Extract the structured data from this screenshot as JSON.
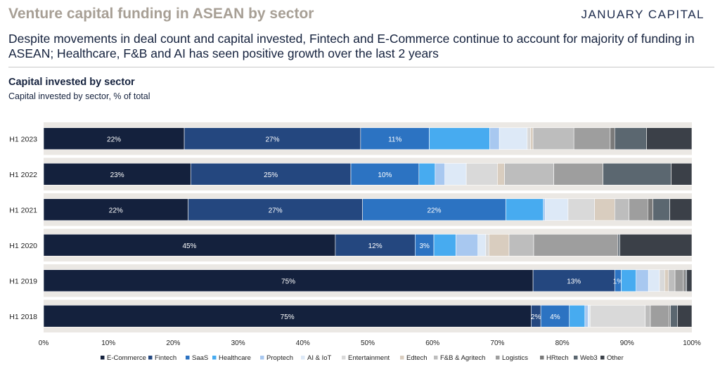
{
  "header": {
    "title": "Venture capital funding in ASEAN by sector",
    "logo": "JANUARY CAPITAL",
    "subtitle": "Despite movements in deal count and capital invested, Fintech and E-Commerce continue to account for majority of funding in ASEAN; Healthcare, F&B and AI has seen positive growth over the last 2 years"
  },
  "colors": {
    "E-Commerce": "#14213d",
    "Fintech": "#24477f",
    "SaaS": "#2c73c2",
    "Healthcare": "#47abf0",
    "Proptech": "#a8c8f0",
    "AI & IoT": "#dde9f7",
    "Entertainment": "#d9d9d9",
    "Edtech": "#d9cdbf",
    "F&B & Agritech": "#bdbdbd",
    "Logistics": "#9e9e9e",
    "HRtech": "#7a7a7a",
    "Web3": "#5b6770",
    "Other": "#3b4048"
  },
  "chart_data": {
    "type": "bar",
    "orientation": "horizontal",
    "stacked": true,
    "title": "Capital invested by sector",
    "subtitle": "Capital invested by sector, % of total",
    "xlim": [
      0,
      100
    ],
    "x_ticks": [
      "0%",
      "10%",
      "20%",
      "30%",
      "40%",
      "50%",
      "60%",
      "70%",
      "80%",
      "90%",
      "100%"
    ],
    "legend_position": "bottom",
    "categories": [
      "H1 2023",
      "H1 2022",
      "H1 2021",
      "H1 2020",
      "H1 2019",
      "H1 2018"
    ],
    "series": [
      {
        "name": "E-Commerce",
        "values": [
          21.7,
          22.7,
          22.3,
          45.0,
          75.5,
          75.2
        ],
        "labels": [
          "22%",
          "23%",
          "22%",
          "45%",
          "75%",
          "75%"
        ]
      },
      {
        "name": "Fintech",
        "values": [
          27.2,
          24.7,
          26.9,
          12.3,
          12.6,
          1.5
        ],
        "labels": [
          "27%",
          "25%",
          "27%",
          "12%",
          "13%",
          "2%"
        ]
      },
      {
        "name": "SaaS",
        "values": [
          10.6,
          10.5,
          22.1,
          2.9,
          1.0,
          4.4
        ],
        "labels": [
          "11%",
          "10%",
          "22%",
          "3%",
          "1%",
          "4%"
        ]
      },
      {
        "name": "Healthcare",
        "values": [
          9.3,
          2.5,
          5.8,
          3.4,
          2.3,
          2.4
        ],
        "labels": [
          "",
          "",
          "",
          "",
          "",
          ""
        ]
      },
      {
        "name": "Proptech",
        "values": [
          1.5,
          1.5,
          0.3,
          3.4,
          1.9,
          0.5
        ],
        "labels": [
          "",
          "",
          "",
          "",
          "",
          ""
        ]
      },
      {
        "name": "AI & IoT",
        "values": [
          4.3,
          3.3,
          3.5,
          1.2,
          1.7,
          0.3
        ],
        "labels": [
          "",
          "",
          "",
          "",
          "",
          ""
        ]
      },
      {
        "name": "Entertainment",
        "values": [
          0.5,
          4.8,
          4.1,
          0.5,
          0.8,
          8.5
        ],
        "labels": [
          "",
          "",
          "",
          "",
          "",
          ""
        ]
      },
      {
        "name": "Edtech",
        "values": [
          0.4,
          1.1,
          3.1,
          3.1,
          0.6,
          0.0
        ],
        "labels": [
          "",
          "",
          "",
          "",
          "",
          ""
        ]
      },
      {
        "name": "F&B & Agritech",
        "values": [
          6.3,
          7.6,
          2.2,
          3.8,
          1.0,
          0.8
        ],
        "labels": [
          "",
          "",
          "",
          "",
          "",
          ""
        ]
      },
      {
        "name": "Logistics",
        "values": [
          5.6,
          7.6,
          2.9,
          13.0,
          1.3,
          2.9
        ],
        "labels": [
          "",
          "",
          "",
          "",
          "",
          ""
        ]
      },
      {
        "name": "HRtech",
        "values": [
          0.7,
          0.0,
          0.8,
          0.0,
          0.3,
          0.2
        ],
        "labels": [
          "",
          "",
          "",
          "",
          "",
          ""
        ]
      },
      {
        "name": "Web3",
        "values": [
          4.9,
          10.5,
          2.6,
          0.3,
          0.2,
          1.1
        ],
        "labels": [
          "",
          "",
          "",
          "",
          "",
          ""
        ]
      },
      {
        "name": "Other",
        "values": [
          7.0,
          3.2,
          3.4,
          11.1,
          0.8,
          2.2
        ],
        "labels": [
          "",
          "",
          "",
          "",
          "",
          ""
        ]
      }
    ]
  }
}
